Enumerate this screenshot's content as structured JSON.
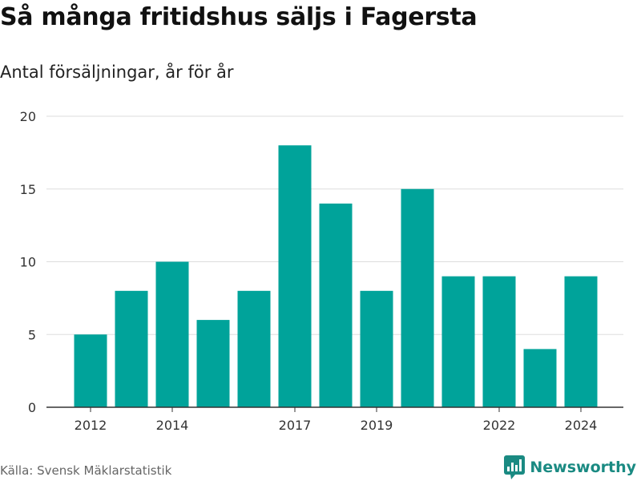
{
  "title": "Så många fritidshus säljs i Fagersta",
  "subtitle": "Antal försäljningar, år för år",
  "source": "Källa: Svensk Mäklarstatistik",
  "brand": "Newsworthy",
  "colors": {
    "bar": "#00a39a",
    "brand": "#1a8a82",
    "grid": "#dddddd",
    "axis": "#333333"
  },
  "chart_data": {
    "type": "bar",
    "categories": [
      2012,
      2013,
      2014,
      2015,
      2016,
      2017,
      2018,
      2019,
      2020,
      2021,
      2022,
      2023,
      2024
    ],
    "values": [
      5,
      8,
      10,
      6,
      8,
      18,
      14,
      8,
      15,
      9,
      9,
      4,
      9
    ],
    "xticks": [
      "2012",
      "2014",
      "2017",
      "2019",
      "2022",
      "2024"
    ],
    "yticks": [
      0,
      5,
      10,
      15,
      20
    ],
    "ylim": [
      0,
      20
    ],
    "grid": true
  }
}
